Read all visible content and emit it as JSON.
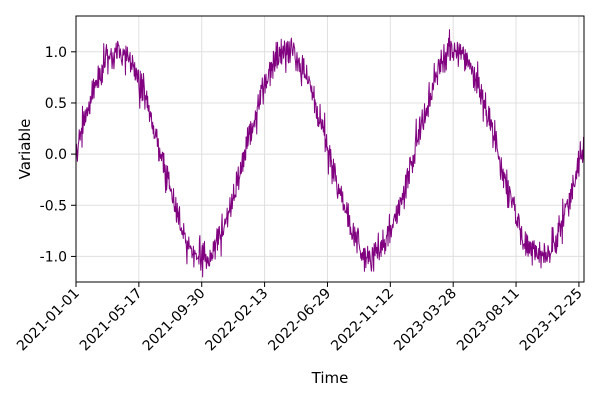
{
  "chart_data": {
    "type": "line",
    "title": "",
    "xlabel": "Time",
    "ylabel": "Variable",
    "x_start": "2021-01-01",
    "x_end": "2024-01-05",
    "xlim": [
      "2021-01-01",
      "2024-01-05"
    ],
    "ylim": [
      -1.25,
      1.35
    ],
    "grid": true,
    "legend": "none",
    "x_ticks": [
      "2021-01-01",
      "2021-05-17",
      "2021-09-30",
      "2022-02-13",
      "2022-06-29",
      "2022-11-12",
      "2023-03-28",
      "2023-08-11",
      "2023-12-25"
    ],
    "y_ticks": [
      1.0,
      0.5,
      0.0,
      -0.5,
      -1.0
    ],
    "y_tick_labels": [
      "1.0",
      "0.5",
      "0.0",
      "-0.5",
      "-1.0"
    ],
    "series": [
      {
        "color": "#800080",
        "shape": "sine with noise",
        "period_days": 365,
        "amplitude": 1.0,
        "noise": 0.08
      }
    ]
  },
  "colors": {
    "line": "#800080",
    "grid": "#e0e0e0",
    "frame": "#000000"
  }
}
